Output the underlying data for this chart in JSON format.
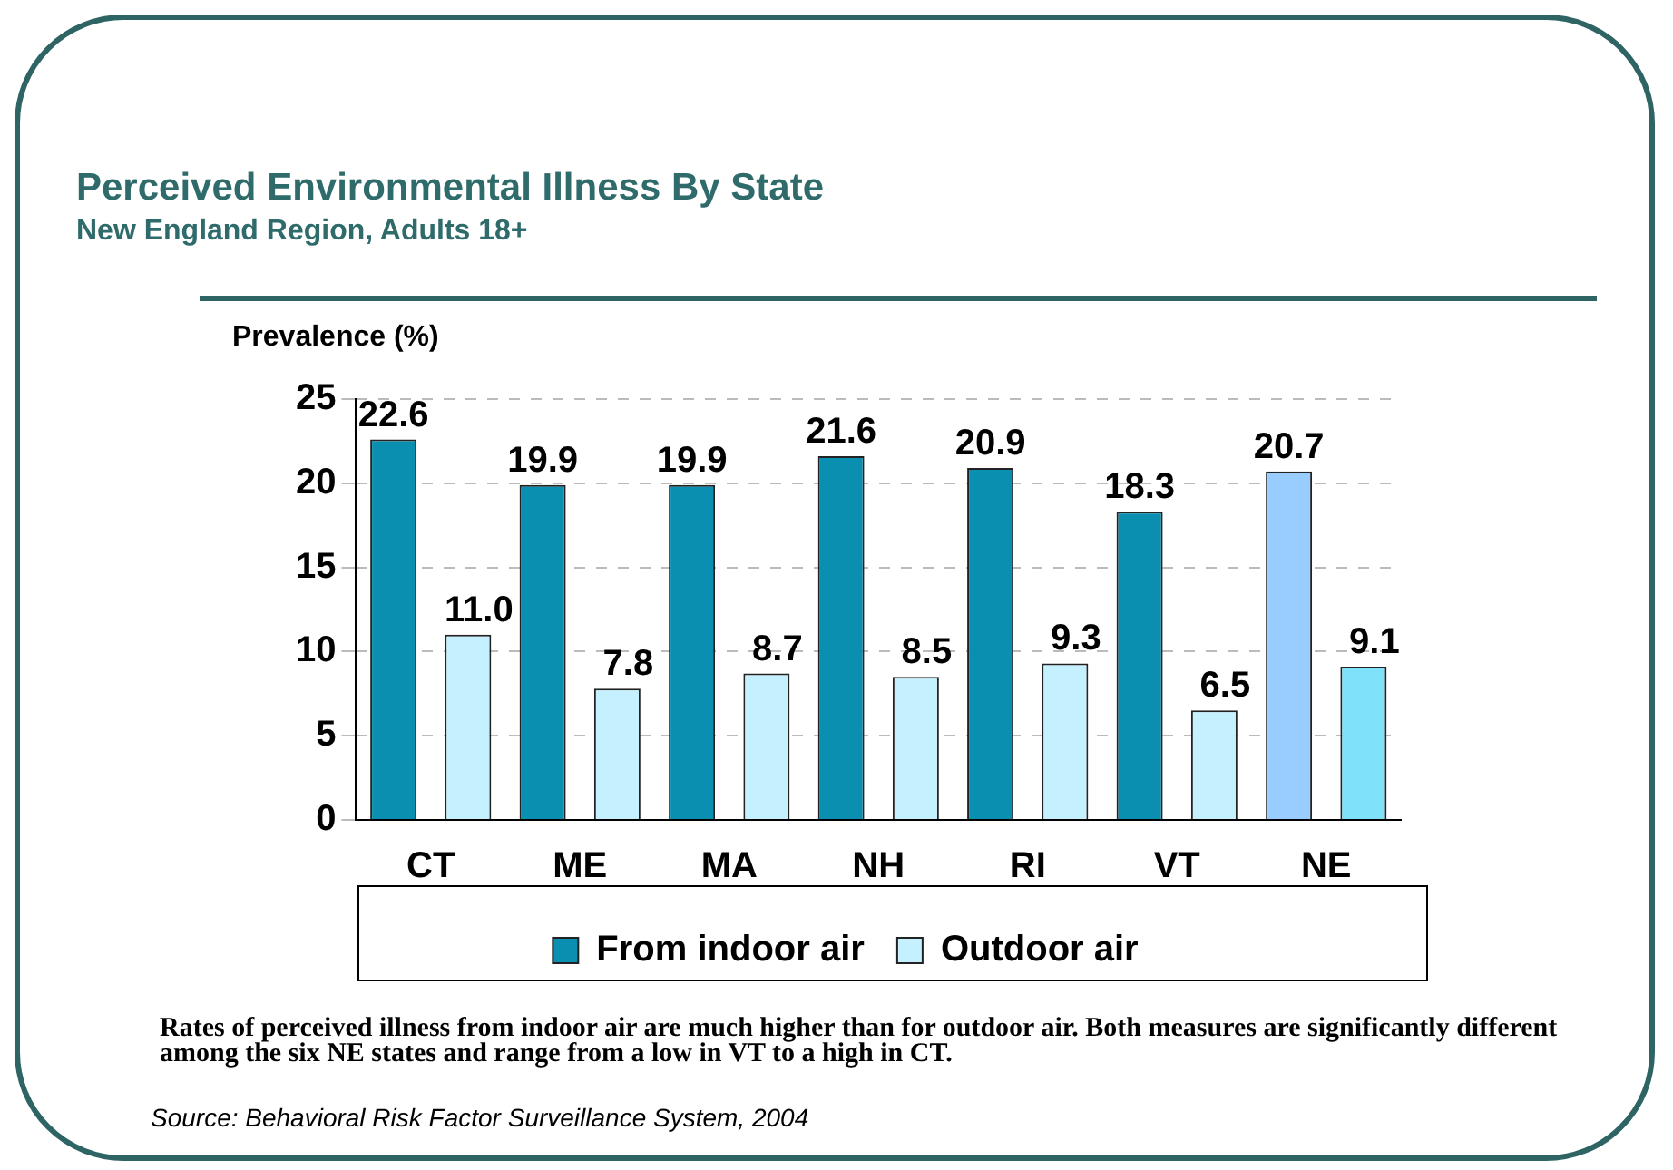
{
  "chart_data": {
    "type": "bar",
    "title": "Perceived Environmental Illness By State",
    "subtitle": "New England Region, Adults 18+",
    "ylabel": "Prevalence (%)",
    "categories": [
      "CT",
      "ME",
      "MA",
      "NH",
      "RI",
      "VT",
      "NE"
    ],
    "series": [
      {
        "name": "From indoor air",
        "color": "#0a8fb0",
        "colors": [
          "#0a8fb0",
          "#0a8fb0",
          "#0a8fb0",
          "#0a8fb0",
          "#0a8fb0",
          "#0a8fb0",
          "#99ccff"
        ],
        "values": [
          22.6,
          19.9,
          19.9,
          21.6,
          20.9,
          18.3,
          20.7
        ],
        "value_labels": [
          "22.6",
          "19.9",
          "19.9",
          "21.6",
          "20.9",
          "18.3",
          "20.7"
        ]
      },
      {
        "name": "Outdoor air",
        "color": "#c4f0ff",
        "colors": [
          "#c4f0ff",
          "#c4f0ff",
          "#c4f0ff",
          "#c4f0ff",
          "#c4f0ff",
          "#c4f0ff",
          "#80e2fa"
        ],
        "values": [
          11.0,
          7.8,
          8.7,
          8.5,
          9.3,
          6.5,
          9.1
        ],
        "value_labels": [
          "11.0",
          "7.8",
          "8.7",
          "8.5",
          "9.3",
          "6.5",
          "9.1"
        ]
      }
    ],
    "ylim": [
      0,
      25
    ],
    "yticks": [
      0,
      5,
      10,
      15,
      20,
      25
    ],
    "grid": "y",
    "legend": "bottom",
    "annotations": [
      "Rates of perceived illness from indoor air are much higher than for outdoor air. Both measures are significantly different among the six NE states and range from a low in VT to a high in CT.",
      "Source: Behavioral Risk Factor Surveillance System, 2004"
    ]
  }
}
